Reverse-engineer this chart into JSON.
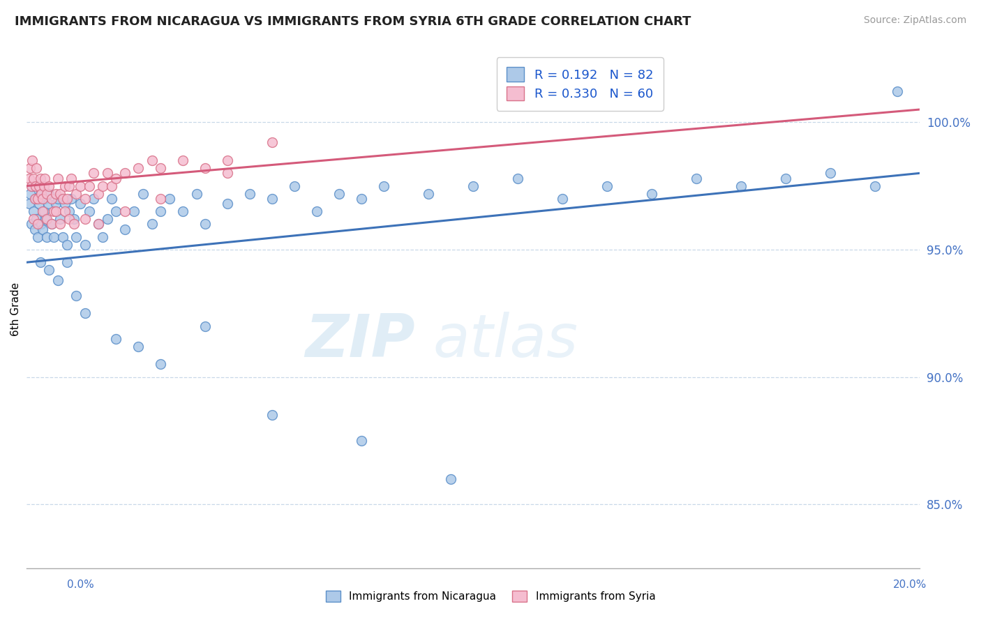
{
  "title": "IMMIGRANTS FROM NICARAGUA VS IMMIGRANTS FROM SYRIA 6TH GRADE CORRELATION CHART",
  "source": "Source: ZipAtlas.com",
  "ylabel": "6th Grade",
  "yticks": [
    85.0,
    90.0,
    95.0,
    100.0
  ],
  "xmin": 0.0,
  "xmax": 20.0,
  "ymin": 82.5,
  "ymax": 102.8,
  "nicaragua_R": 0.192,
  "nicaragua_N": 82,
  "syria_R": 0.33,
  "syria_N": 60,
  "nicaragua_color": "#adc9e8",
  "nicaragua_edge": "#5b8fc9",
  "syria_color": "#f5bdd0",
  "syria_edge": "#d9728a",
  "nicaragua_line_color": "#3d72b8",
  "syria_line_color": "#d45a7a",
  "tick_color": "#4472c4",
  "nicaragua_points_x": [
    0.05,
    0.08,
    0.1,
    0.12,
    0.15,
    0.18,
    0.2,
    0.22,
    0.25,
    0.28,
    0.3,
    0.32,
    0.35,
    0.38,
    0.4,
    0.42,
    0.45,
    0.48,
    0.5,
    0.55,
    0.6,
    0.65,
    0.7,
    0.75,
    0.8,
    0.85,
    0.9,
    0.95,
    1.0,
    1.05,
    1.1,
    1.2,
    1.3,
    1.4,
    1.5,
    1.6,
    1.7,
    1.8,
    1.9,
    2.0,
    2.2,
    2.4,
    2.6,
    2.8,
    3.0,
    3.2,
    3.5,
    3.8,
    4.0,
    4.5,
    5.0,
    5.5,
    6.0,
    6.5,
    7.0,
    7.5,
    8.0,
    9.0,
    10.0,
    11.0,
    12.0,
    13.0,
    14.0,
    15.0,
    16.0,
    17.0,
    18.0,
    19.0,
    0.3,
    0.5,
    0.7,
    0.9,
    1.1,
    1.3,
    2.0,
    2.5,
    3.0,
    4.0,
    5.5,
    7.5,
    9.5,
    19.5
  ],
  "nicaragua_points_y": [
    96.8,
    97.2,
    96.0,
    97.5,
    96.5,
    95.8,
    97.0,
    96.2,
    95.5,
    96.8,
    97.2,
    96.0,
    95.8,
    96.5,
    97.0,
    96.2,
    95.5,
    96.8,
    97.2,
    96.0,
    95.5,
    96.8,
    97.0,
    96.2,
    95.5,
    96.8,
    95.2,
    96.5,
    97.0,
    96.2,
    95.5,
    96.8,
    95.2,
    96.5,
    97.0,
    96.0,
    95.5,
    96.2,
    97.0,
    96.5,
    95.8,
    96.5,
    97.2,
    96.0,
    96.5,
    97.0,
    96.5,
    97.2,
    96.0,
    96.8,
    97.2,
    97.0,
    97.5,
    96.5,
    97.2,
    97.0,
    97.5,
    97.2,
    97.5,
    97.8,
    97.0,
    97.5,
    97.2,
    97.8,
    97.5,
    97.8,
    98.0,
    97.5,
    94.5,
    94.2,
    93.8,
    94.5,
    93.2,
    92.5,
    91.5,
    91.2,
    90.5,
    92.0,
    88.5,
    87.5,
    86.0,
    101.2
  ],
  "syria_points_x": [
    0.05,
    0.08,
    0.1,
    0.12,
    0.15,
    0.18,
    0.2,
    0.22,
    0.25,
    0.28,
    0.3,
    0.32,
    0.35,
    0.38,
    0.4,
    0.45,
    0.5,
    0.55,
    0.6,
    0.65,
    0.7,
    0.75,
    0.8,
    0.85,
    0.9,
    0.95,
    1.0,
    1.1,
    1.2,
    1.3,
    1.4,
    1.5,
    1.6,
    1.7,
    1.8,
    1.9,
    2.0,
    2.2,
    2.5,
    2.8,
    3.0,
    3.5,
    4.0,
    4.5,
    0.15,
    0.25,
    0.35,
    0.45,
    0.55,
    0.65,
    0.75,
    0.85,
    0.95,
    1.05,
    1.3,
    1.6,
    2.2,
    3.0,
    4.5,
    5.5
  ],
  "syria_points_y": [
    97.8,
    98.2,
    97.5,
    98.5,
    97.8,
    97.0,
    97.5,
    98.2,
    97.0,
    97.5,
    97.8,
    97.2,
    97.0,
    97.5,
    97.8,
    97.2,
    97.5,
    97.0,
    96.5,
    97.2,
    97.8,
    97.2,
    97.0,
    97.5,
    97.0,
    97.5,
    97.8,
    97.2,
    97.5,
    97.0,
    97.5,
    98.0,
    97.2,
    97.5,
    98.0,
    97.5,
    97.8,
    98.0,
    98.2,
    98.5,
    98.2,
    98.5,
    98.2,
    98.5,
    96.2,
    96.0,
    96.5,
    96.2,
    96.0,
    96.5,
    96.0,
    96.5,
    96.2,
    96.0,
    96.2,
    96.0,
    96.5,
    97.0,
    98.0,
    99.2
  ]
}
